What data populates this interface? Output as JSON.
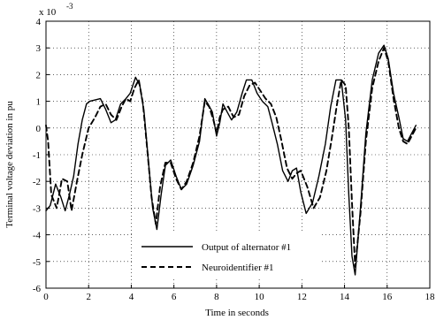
{
  "chart_data": {
    "type": "line",
    "title": "",
    "xlabel": "Time in seconds",
    "ylabel": "Terminal voltage deviation in pu",
    "y_scale_label": "x 10",
    "y_scale_exponent": "-3",
    "xlim": [
      0,
      18
    ],
    "ylim": [
      -6,
      4
    ],
    "x_ticks": [
      0,
      2,
      4,
      6,
      8,
      10,
      12,
      14,
      16,
      18
    ],
    "y_ticks": [
      -6,
      -5,
      -4,
      -3,
      -2,
      -1,
      0,
      1,
      2,
      3,
      4
    ],
    "grid": true,
    "legend_position": "bottom-center",
    "series": [
      {
        "name": "Output of alternator #1",
        "style": "solid",
        "color": "#000000",
        "x": [
          0,
          0.2,
          0.45,
          0.7,
          0.9,
          1.1,
          1.3,
          1.5,
          1.7,
          1.9,
          2.05,
          2.3,
          2.55,
          2.8,
          3.05,
          3.25,
          3.5,
          3.75,
          3.95,
          4.2,
          4.4,
          4.6,
          4.8,
          5.0,
          5.2,
          5.4,
          5.6,
          5.85,
          6.1,
          6.35,
          6.6,
          6.9,
          7.2,
          7.45,
          7.6,
          7.8,
          8.0,
          8.15,
          8.3,
          8.5,
          8.7,
          8.95,
          9.2,
          9.4,
          9.65,
          9.9,
          10.15,
          10.4,
          10.6,
          10.85,
          11.1,
          11.35,
          11.55,
          11.75,
          11.95,
          12.2,
          12.5,
          12.8,
          13.1,
          13.35,
          13.6,
          13.85,
          14.05,
          14.2,
          14.35,
          14.5,
          14.75,
          15.0,
          15.3,
          15.6,
          15.85,
          16.05,
          16.3,
          16.55,
          16.75,
          16.95,
          17.15,
          17.35
        ],
        "values": [
          -3.1,
          -2.9,
          -2.1,
          -2.6,
          -3.1,
          -2.5,
          -1.8,
          -0.6,
          0.3,
          0.9,
          1.0,
          1.05,
          1.1,
          0.7,
          0.2,
          0.3,
          0.9,
          1.1,
          1.3,
          1.9,
          1.6,
          0.6,
          -1.2,
          -3.0,
          -3.8,
          -2.5,
          -1.4,
          -1.2,
          -1.8,
          -2.3,
          -2.1,
          -1.4,
          -0.5,
          1.1,
          0.9,
          0.6,
          -0.3,
          0.2,
          0.9,
          0.6,
          0.3,
          0.6,
          1.3,
          1.8,
          1.8,
          1.3,
          1.0,
          0.8,
          0.2,
          -0.6,
          -1.6,
          -2.0,
          -1.6,
          -1.5,
          -2.4,
          -3.2,
          -2.8,
          -1.8,
          -0.6,
          0.8,
          1.8,
          1.8,
          0.3,
          -2.5,
          -4.8,
          -5.5,
          -3.0,
          -0.2,
          1.8,
          2.8,
          3.1,
          2.6,
          1.3,
          0.4,
          -0.4,
          -0.5,
          -0.2,
          0.1
        ]
      },
      {
        "name": "Neuroidentifier #1",
        "style": "dashed",
        "color": "#000000",
        "x": [
          0,
          0.1,
          0.25,
          0.5,
          0.75,
          1.0,
          1.2,
          1.45,
          1.7,
          2.0,
          2.3,
          2.55,
          2.8,
          3.05,
          3.3,
          3.55,
          3.75,
          3.95,
          4.15,
          4.35,
          4.55,
          4.75,
          4.95,
          5.15,
          5.35,
          5.6,
          5.85,
          6.1,
          6.35,
          6.6,
          6.9,
          7.2,
          7.45,
          7.65,
          7.85,
          8.0,
          8.15,
          8.3,
          8.55,
          8.8,
          9.05,
          9.3,
          9.55,
          9.8,
          10.05,
          10.3,
          10.55,
          10.8,
          11.05,
          11.3,
          11.55,
          11.75,
          11.95,
          12.25,
          12.55,
          12.85,
          13.15,
          13.4,
          13.65,
          13.85,
          14.05,
          14.2,
          14.35,
          14.5,
          14.75,
          15.0,
          15.3,
          15.6,
          15.85,
          16.05,
          16.3,
          16.55,
          16.75,
          16.95,
          17.15,
          17.35
        ],
        "values": [
          0.1,
          -0.5,
          -2.5,
          -3.0,
          -1.9,
          -2.0,
          -3.1,
          -2.0,
          -1.0,
          0.0,
          0.4,
          0.8,
          0.9,
          0.5,
          0.3,
          0.8,
          1.1,
          1.0,
          1.5,
          1.8,
          0.9,
          -0.8,
          -2.6,
          -3.6,
          -2.2,
          -1.3,
          -1.3,
          -1.9,
          -2.3,
          -2.0,
          -1.3,
          -0.3,
          1.0,
          0.8,
          0.3,
          -0.2,
          0.4,
          0.7,
          0.8,
          0.4,
          0.5,
          1.2,
          1.6,
          1.7,
          1.4,
          1.1,
          0.9,
          0.4,
          -0.5,
          -1.5,
          -1.9,
          -1.7,
          -1.6,
          -2.2,
          -3.0,
          -2.6,
          -1.6,
          -0.4,
          0.9,
          1.8,
          1.6,
          0.0,
          -2.8,
          -5.2,
          -3.2,
          -0.5,
          1.5,
          2.5,
          3.0,
          2.5,
          1.1,
          0.0,
          -0.5,
          -0.6,
          -0.3,
          0.0
        ]
      }
    ]
  }
}
